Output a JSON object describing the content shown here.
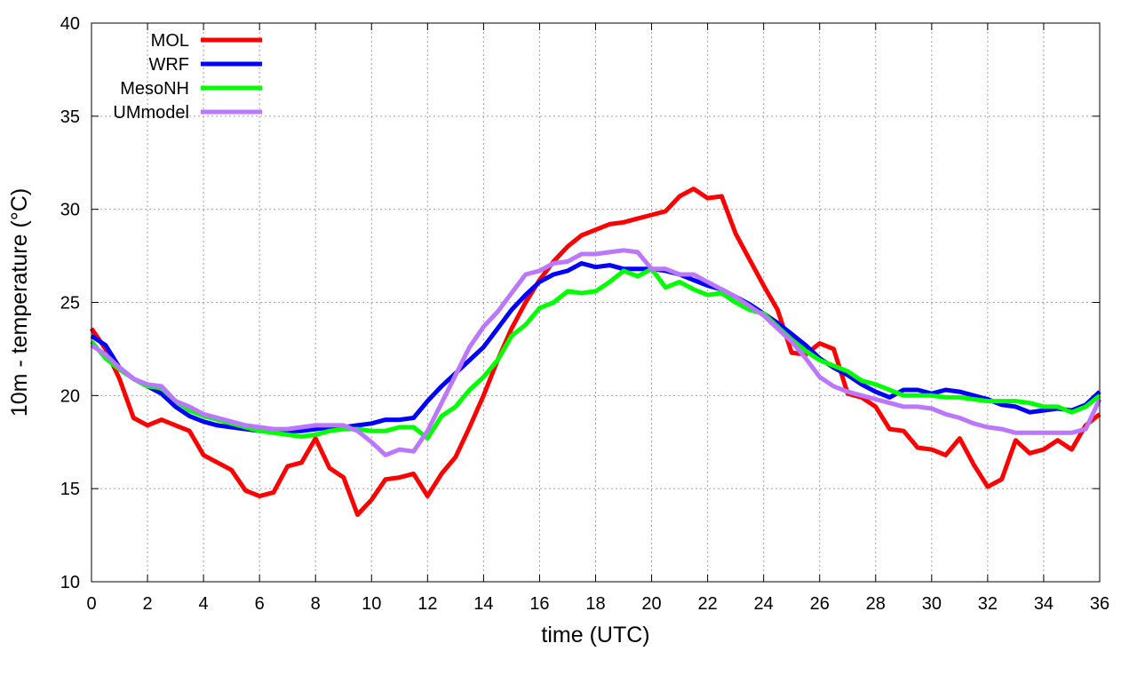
{
  "chart_data": {
    "type": "line",
    "title": "",
    "xlabel": "time (UTC)",
    "ylabel": "10m - temperature (°C)",
    "xlim": [
      0,
      36
    ],
    "ylim": [
      10,
      40
    ],
    "xticks": [
      0,
      2,
      4,
      6,
      8,
      10,
      12,
      14,
      16,
      18,
      20,
      22,
      24,
      26,
      28,
      30,
      32,
      34,
      36
    ],
    "yticks": [
      10,
      15,
      20,
      25,
      30,
      35,
      40
    ],
    "grid": true,
    "legend_position": "top-left",
    "series": [
      {
        "name": "MOL",
        "color": "#ff0000",
        "points": [
          [
            0,
            23.6
          ],
          [
            0.5,
            22.5
          ],
          [
            1,
            20.9
          ],
          [
            1.5,
            18.8
          ],
          [
            2,
            18.4
          ],
          [
            2.5,
            18.7
          ],
          [
            3,
            18.4
          ],
          [
            3.5,
            18.1
          ],
          [
            4,
            16.8
          ],
          [
            4.5,
            16.4
          ],
          [
            5,
            16.0
          ],
          [
            5.5,
            14.9
          ],
          [
            6,
            14.6
          ],
          [
            6.5,
            14.8
          ],
          [
            7,
            16.2
          ],
          [
            7.5,
            16.4
          ],
          [
            8,
            17.7
          ],
          [
            8.5,
            16.1
          ],
          [
            9,
            15.6
          ],
          [
            9.5,
            13.6
          ],
          [
            10,
            14.4
          ],
          [
            10.5,
            15.5
          ],
          [
            11,
            15.6
          ],
          [
            11.5,
            15.8
          ],
          [
            12,
            14.6
          ],
          [
            12.5,
            15.8
          ],
          [
            13,
            16.7
          ],
          [
            13.5,
            18.3
          ],
          [
            14,
            20.0
          ],
          [
            14.5,
            21.9
          ],
          [
            15,
            23.6
          ],
          [
            15.5,
            25.0
          ],
          [
            16,
            26.2
          ],
          [
            16.5,
            27.2
          ],
          [
            17,
            28.0
          ],
          [
            17.5,
            28.6
          ],
          [
            18,
            28.9
          ],
          [
            18.5,
            29.2
          ],
          [
            19,
            29.3
          ],
          [
            19.5,
            29.5
          ],
          [
            20,
            29.7
          ],
          [
            20.5,
            29.9
          ],
          [
            21,
            30.7
          ],
          [
            21.5,
            31.1
          ],
          [
            22,
            30.6
          ],
          [
            22.5,
            30.7
          ],
          [
            23,
            28.7
          ],
          [
            23.5,
            27.3
          ],
          [
            24,
            25.9
          ],
          [
            24.5,
            24.6
          ],
          [
            25,
            22.3
          ],
          [
            25.5,
            22.2
          ],
          [
            26,
            22.8
          ],
          [
            26.5,
            22.5
          ],
          [
            27,
            20.1
          ],
          [
            27.5,
            19.9
          ],
          [
            28,
            19.4
          ],
          [
            28.5,
            18.2
          ],
          [
            29,
            18.1
          ],
          [
            29.5,
            17.2
          ],
          [
            30,
            17.1
          ],
          [
            30.5,
            16.8
          ],
          [
            31,
            17.7
          ],
          [
            31.5,
            16.3
          ],
          [
            32,
            15.1
          ],
          [
            32.5,
            15.5
          ],
          [
            33,
            17.6
          ],
          [
            33.5,
            16.9
          ],
          [
            34,
            17.1
          ],
          [
            34.5,
            17.6
          ],
          [
            35,
            17.1
          ],
          [
            35.5,
            18.4
          ],
          [
            36,
            19.0
          ]
        ]
      },
      {
        "name": "WRF",
        "color": "#0000ff",
        "points": [
          [
            0,
            23.2
          ],
          [
            0.5,
            22.7
          ],
          [
            1,
            21.5
          ],
          [
            1.5,
            20.9
          ],
          [
            2,
            20.5
          ],
          [
            2.5,
            20.1
          ],
          [
            3,
            19.4
          ],
          [
            3.5,
            18.9
          ],
          [
            4,
            18.6
          ],
          [
            4.5,
            18.4
          ],
          [
            5,
            18.3
          ],
          [
            5.5,
            18.2
          ],
          [
            6,
            18.1
          ],
          [
            6.5,
            18.1
          ],
          [
            7,
            18.1
          ],
          [
            7.5,
            18.1
          ],
          [
            8,
            18.2
          ],
          [
            8.5,
            18.3
          ],
          [
            9,
            18.3
          ],
          [
            9.5,
            18.4
          ],
          [
            10,
            18.5
          ],
          [
            10.5,
            18.7
          ],
          [
            11,
            18.7
          ],
          [
            11.5,
            18.8
          ],
          [
            12,
            19.7
          ],
          [
            12.5,
            20.5
          ],
          [
            13,
            21.2
          ],
          [
            13.5,
            21.9
          ],
          [
            14,
            22.6
          ],
          [
            14.5,
            23.6
          ],
          [
            15,
            24.6
          ],
          [
            15.5,
            25.4
          ],
          [
            16,
            26.1
          ],
          [
            16.5,
            26.5
          ],
          [
            17,
            26.7
          ],
          [
            17.5,
            27.1
          ],
          [
            18,
            26.9
          ],
          [
            18.5,
            27.0
          ],
          [
            19,
            26.8
          ],
          [
            19.5,
            26.8
          ],
          [
            20,
            26.8
          ],
          [
            20.5,
            26.7
          ],
          [
            21,
            26.5
          ],
          [
            21.5,
            26.2
          ],
          [
            22,
            25.9
          ],
          [
            22.5,
            25.7
          ],
          [
            23,
            25.3
          ],
          [
            23.5,
            24.9
          ],
          [
            24,
            24.4
          ],
          [
            24.5,
            23.9
          ],
          [
            25,
            23.3
          ],
          [
            25.5,
            22.7
          ],
          [
            26,
            22.0
          ],
          [
            26.5,
            21.5
          ],
          [
            27,
            21.1
          ],
          [
            27.5,
            20.6
          ],
          [
            28,
            20.2
          ],
          [
            28.5,
            19.9
          ],
          [
            29,
            20.3
          ],
          [
            29.5,
            20.3
          ],
          [
            30,
            20.1
          ],
          [
            30.5,
            20.3
          ],
          [
            31,
            20.2
          ],
          [
            31.5,
            20.0
          ],
          [
            32,
            19.8
          ],
          [
            32.5,
            19.5
          ],
          [
            33,
            19.4
          ],
          [
            33.5,
            19.1
          ],
          [
            34,
            19.2
          ],
          [
            34.5,
            19.3
          ],
          [
            35,
            19.2
          ],
          [
            35.5,
            19.5
          ],
          [
            36,
            20.2
          ]
        ]
      },
      {
        "name": "MesoNH",
        "color": "#00ff00",
        "points": [
          [
            0,
            22.9
          ],
          [
            0.5,
            22.0
          ],
          [
            1,
            21.4
          ],
          [
            1.5,
            20.9
          ],
          [
            2,
            20.5
          ],
          [
            2.5,
            20.4
          ],
          [
            3,
            19.7
          ],
          [
            3.5,
            19.2
          ],
          [
            4,
            18.9
          ],
          [
            4.5,
            18.7
          ],
          [
            5,
            18.5
          ],
          [
            5.5,
            18.3
          ],
          [
            6,
            18.1
          ],
          [
            6.5,
            18.0
          ],
          [
            7,
            17.9
          ],
          [
            7.5,
            17.8
          ],
          [
            8,
            17.9
          ],
          [
            8.5,
            18.1
          ],
          [
            9,
            18.2
          ],
          [
            9.5,
            18.2
          ],
          [
            10,
            18.1
          ],
          [
            10.5,
            18.1
          ],
          [
            11,
            18.3
          ],
          [
            11.5,
            18.3
          ],
          [
            12,
            17.7
          ],
          [
            12.5,
            18.9
          ],
          [
            13,
            19.4
          ],
          [
            13.5,
            20.3
          ],
          [
            14,
            21.0
          ],
          [
            14.5,
            21.9
          ],
          [
            15,
            23.2
          ],
          [
            15.5,
            23.8
          ],
          [
            16,
            24.7
          ],
          [
            16.5,
            25.0
          ],
          [
            17,
            25.6
          ],
          [
            17.5,
            25.5
          ],
          [
            18,
            25.6
          ],
          [
            18.5,
            26.1
          ],
          [
            19,
            26.7
          ],
          [
            19.5,
            26.4
          ],
          [
            20,
            26.8
          ],
          [
            20.5,
            25.8
          ],
          [
            21,
            26.1
          ],
          [
            21.5,
            25.7
          ],
          [
            22,
            25.4
          ],
          [
            22.5,
            25.5
          ],
          [
            23,
            25.0
          ],
          [
            23.5,
            24.6
          ],
          [
            24,
            24.4
          ],
          [
            24.5,
            23.7
          ],
          [
            25,
            23.0
          ],
          [
            25.5,
            22.4
          ],
          [
            26,
            21.9
          ],
          [
            26.5,
            21.6
          ],
          [
            27,
            21.3
          ],
          [
            27.5,
            20.8
          ],
          [
            28,
            20.6
          ],
          [
            28.5,
            20.3
          ],
          [
            29,
            20.0
          ],
          [
            29.5,
            20.0
          ],
          [
            30,
            20.0
          ],
          [
            30.5,
            19.9
          ],
          [
            31,
            19.9
          ],
          [
            31.5,
            19.8
          ],
          [
            32,
            19.7
          ],
          [
            32.5,
            19.7
          ],
          [
            33,
            19.7
          ],
          [
            33.5,
            19.6
          ],
          [
            34,
            19.4
          ],
          [
            34.5,
            19.4
          ],
          [
            35,
            19.1
          ],
          [
            35.5,
            19.4
          ],
          [
            36,
            20.0
          ]
        ]
      },
      {
        "name": "UMmodel",
        "color": "#bb77ff",
        "points": [
          [
            0,
            22.7
          ],
          [
            0.5,
            22.2
          ],
          [
            1,
            21.5
          ],
          [
            1.5,
            20.9
          ],
          [
            2,
            20.6
          ],
          [
            2.5,
            20.5
          ],
          [
            3,
            19.7
          ],
          [
            3.5,
            19.4
          ],
          [
            4,
            19.0
          ],
          [
            4.5,
            18.8
          ],
          [
            5,
            18.6
          ],
          [
            5.5,
            18.4
          ],
          [
            6,
            18.3
          ],
          [
            6.5,
            18.2
          ],
          [
            7,
            18.2
          ],
          [
            7.5,
            18.3
          ],
          [
            8,
            18.4
          ],
          [
            8.5,
            18.4
          ],
          [
            9,
            18.4
          ],
          [
            9.5,
            18.1
          ],
          [
            10,
            17.5
          ],
          [
            10.5,
            16.8
          ],
          [
            11,
            17.1
          ],
          [
            11.5,
            17.0
          ],
          [
            12,
            18.1
          ],
          [
            12.5,
            19.6
          ],
          [
            13,
            21.1
          ],
          [
            13.5,
            22.6
          ],
          [
            14,
            23.7
          ],
          [
            14.5,
            24.5
          ],
          [
            15,
            25.5
          ],
          [
            15.5,
            26.5
          ],
          [
            16,
            26.7
          ],
          [
            16.5,
            27.1
          ],
          [
            17,
            27.2
          ],
          [
            17.5,
            27.6
          ],
          [
            18,
            27.6
          ],
          [
            18.5,
            27.7
          ],
          [
            19,
            27.8
          ],
          [
            19.5,
            27.7
          ],
          [
            20,
            26.8
          ],
          [
            20.5,
            26.8
          ],
          [
            21,
            26.5
          ],
          [
            21.5,
            26.5
          ],
          [
            22,
            26.1
          ],
          [
            22.5,
            25.7
          ],
          [
            23,
            25.3
          ],
          [
            23.5,
            24.8
          ],
          [
            24,
            24.3
          ],
          [
            24.5,
            23.6
          ],
          [
            25,
            22.9
          ],
          [
            25.5,
            22.0
          ],
          [
            26,
            21.0
          ],
          [
            26.5,
            20.5
          ],
          [
            27,
            20.2
          ],
          [
            27.5,
            20.0
          ],
          [
            28,
            19.8
          ],
          [
            28.5,
            19.6
          ],
          [
            29,
            19.4
          ],
          [
            29.5,
            19.4
          ],
          [
            30,
            19.3
          ],
          [
            30.5,
            19.0
          ],
          [
            31,
            18.8
          ],
          [
            31.5,
            18.5
          ],
          [
            32,
            18.3
          ],
          [
            32.5,
            18.2
          ],
          [
            33,
            18.0
          ],
          [
            33.5,
            18.0
          ],
          [
            34,
            18.0
          ],
          [
            34.5,
            18.0
          ],
          [
            35,
            18.0
          ],
          [
            35.5,
            18.2
          ],
          [
            36,
            19.8
          ]
        ]
      }
    ]
  }
}
